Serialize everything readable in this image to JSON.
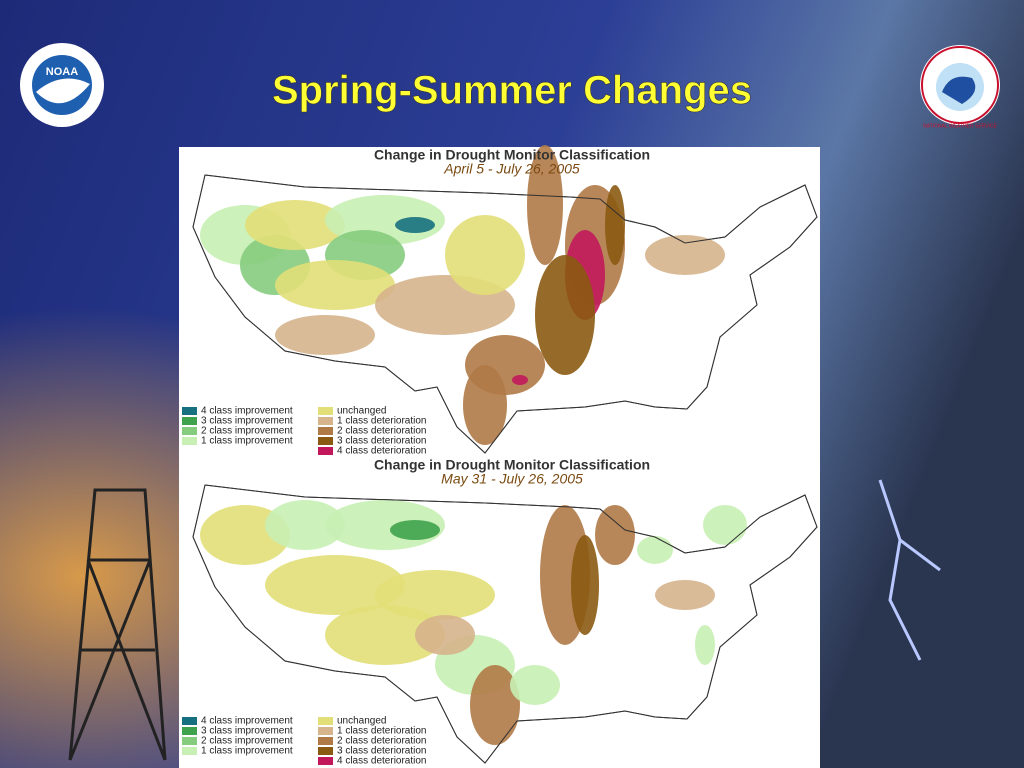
{
  "slide": {
    "title": "Spring-Summer Changes",
    "noaa_logo": "NOAA",
    "nws_logo": "NATIONAL WEATHER SERVICE",
    "maps": [
      {
        "title": "Change in Drought Monitor Classification",
        "subtitle": "April 5 - July 26, 2005",
        "legend": [
          {
            "label": "4 class improvement",
            "color": "#17707f"
          },
          {
            "label": "3 class improvement",
            "color": "#3fa34d"
          },
          {
            "label": "2 class improvement",
            "color": "#86cc7e"
          },
          {
            "label": "1 class improvement",
            "color": "#c8efb4"
          },
          {
            "label": "unchanged",
            "color": "#e2df78"
          },
          {
            "label": "1 class deterioration",
            "color": "#d6b48c"
          },
          {
            "label": "2 class deterioration",
            "color": "#b07a47"
          },
          {
            "label": "3 class deterioration",
            "color": "#8b5a12"
          },
          {
            "label": "4 class deterioration",
            "color": "#c2185b"
          }
        ]
      },
      {
        "title": "Change in Drought Monitor Classification",
        "subtitle": "May 31 - July 26, 2005",
        "legend": [
          {
            "label": "4 class improvement",
            "color": "#17707f"
          },
          {
            "label": "3 class improvement",
            "color": "#3fa34d"
          },
          {
            "label": "2 class improvement",
            "color": "#86cc7e"
          },
          {
            "label": "1 class improvement",
            "color": "#c8efb4"
          },
          {
            "label": "unchanged",
            "color": "#e2df78"
          },
          {
            "label": "1 class deterioration",
            "color": "#d6b48c"
          },
          {
            "label": "2 class deterioration",
            "color": "#b07a47"
          },
          {
            "label": "3 class deterioration",
            "color": "#8b5a12"
          },
          {
            "label": "4 class deterioration",
            "color": "#c2185b"
          }
        ]
      }
    ]
  }
}
